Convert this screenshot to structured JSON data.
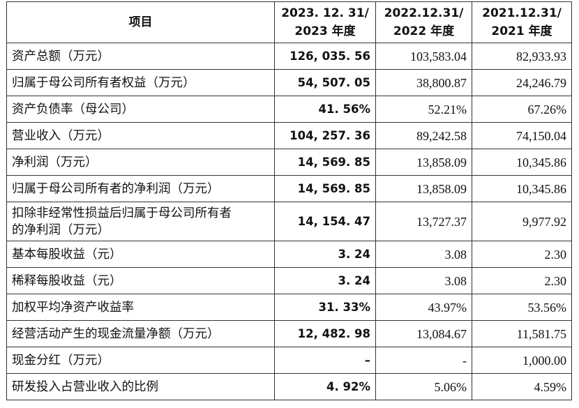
{
  "table": {
    "header": [
      [
        "项目"
      ],
      [
        "2023. 12. 31/",
        "2023 年度"
      ],
      [
        "2022.12.31/",
        "2022 年度"
      ],
      [
        "2021.12.31/",
        "2021 年度"
      ]
    ],
    "rows": [
      [
        "资产总额（万元）",
        "126, 035. 56",
        "103,583.04",
        "82,933.93"
      ],
      [
        "归属于母公司所有者权益（万元）",
        "54, 507. 05",
        "38,800.87",
        "24,246.79"
      ],
      [
        "资产负债率（母公司）",
        "41. 56%",
        "52.21%",
        "67.26%"
      ],
      [
        "营业收入（万元）",
        "104, 257. 36",
        "89,242.58",
        "74,150.04"
      ],
      [
        "净利润（万元）",
        "14, 569. 85",
        "13,858.09",
        "10,345.86"
      ],
      [
        "归属于母公司所有者的净利润（万元）",
        "14, 569. 85",
        "13,858.09",
        "10,345.86"
      ],
      [
        [
          "扣除非经常性损益后归属于母公司所有者",
          "的净利润（万元）"
        ],
        "14, 154. 47",
        "13,727.37",
        "9,977.92"
      ],
      [
        "基本每股收益（元）",
        "3. 24",
        "3.08",
        "2.30"
      ],
      [
        "稀释每股收益（元）",
        "3. 24",
        "3.08",
        "2.30"
      ],
      [
        "加权平均净资产收益率",
        "31. 33%",
        "43.97%",
        "53.56%"
      ],
      [
        "经营活动产生的现金流量净额（万元）",
        "12, 482. 98",
        "13,084.67",
        "11,581.75"
      ],
      [
        "现金分红（万元）",
        "–",
        "-",
        "1,000.00"
      ],
      [
        "研发投入占营业收入的比例",
        "4. 92%",
        "5.06%",
        "4.59%"
      ]
    ]
  }
}
